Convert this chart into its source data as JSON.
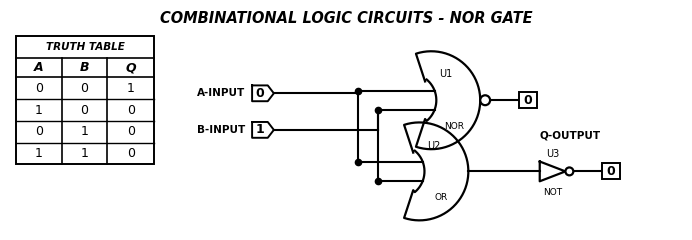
{
  "title": "COMBINATIONAL LOGIC CIRCUITS - NOR GATE",
  "title_fontsize": 10.5,
  "bg_color": "#ffffff",
  "line_color": "#000000",
  "truth_table_headers": [
    "A",
    "B",
    "Q"
  ],
  "truth_table_rows": [
    [
      0,
      0,
      1
    ],
    [
      1,
      0,
      0
    ],
    [
      0,
      1,
      0
    ],
    [
      1,
      1,
      0
    ]
  ],
  "a_input_val": 0,
  "b_input_val": 1,
  "nor_out_val": 0,
  "not_out_val": 0,
  "label_a": "A-INPUT",
  "label_b": "B-INPUT",
  "label_q": "Q-OUTPUT",
  "label_u1": "U1",
  "label_u2": "U2",
  "label_u3": "U3",
  "label_nor": "NOR",
  "label_or": "OR",
  "label_not": "NOT"
}
